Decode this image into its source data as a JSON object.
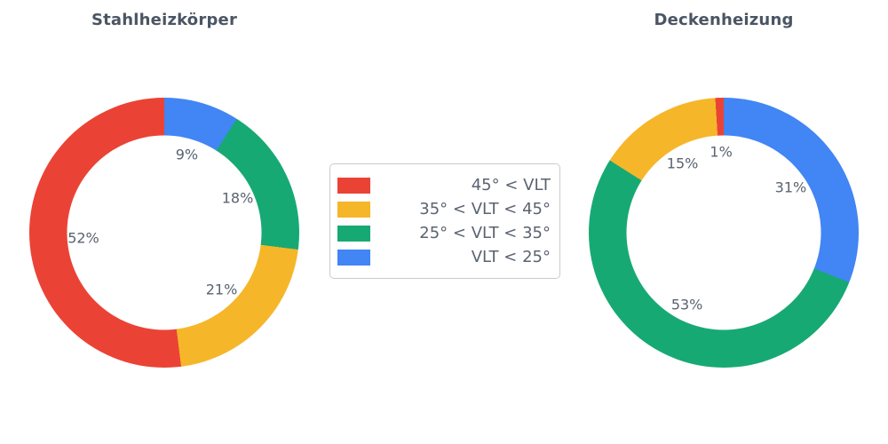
{
  "page": {
    "background": "#ffffff",
    "text_color": "#5a6370",
    "title_color": "#4b5563"
  },
  "legend": {
    "items": [
      {
        "label": "45° < VLT",
        "color": "#ea4335"
      },
      {
        "label": "35° < VLT < 45°",
        "color": "#f6b62a"
      },
      {
        "label": "25° < VLT < 35°",
        "color": "#17a974"
      },
      {
        "label": "VLT < 25°",
        "color": "#4285f4"
      }
    ]
  },
  "chart_data": [
    {
      "type": "pie",
      "title": "Stahlheizkörper",
      "labels": [
        "45° < VLT",
        "35° < VLT < 45°",
        "25° < VLT < 35°",
        "VLT < 25°"
      ],
      "values": [
        52,
        21,
        18,
        9
      ],
      "colors": [
        "#ea4335",
        "#f6b62a",
        "#17a974",
        "#4285f4"
      ],
      "unit": "%",
      "hole_ratio": 0.72,
      "start_angle_deg": 90,
      "direction": "counterclockwise",
      "label_distance": 0.6,
      "legend_position": "center-between-charts"
    },
    {
      "type": "pie",
      "title": "Deckenheizung",
      "labels": [
        "45° < VLT",
        "35° < VLT < 45°",
        "25° < VLT < 35°",
        "VLT < 25°"
      ],
      "values": [
        1,
        15,
        53,
        31
      ],
      "colors": [
        "#ea4335",
        "#f6b62a",
        "#17a974",
        "#4285f4"
      ],
      "unit": "%",
      "hole_ratio": 0.72,
      "start_angle_deg": 90,
      "direction": "counterclockwise",
      "label_distance": 0.6,
      "legend_position": "center-between-charts"
    }
  ]
}
